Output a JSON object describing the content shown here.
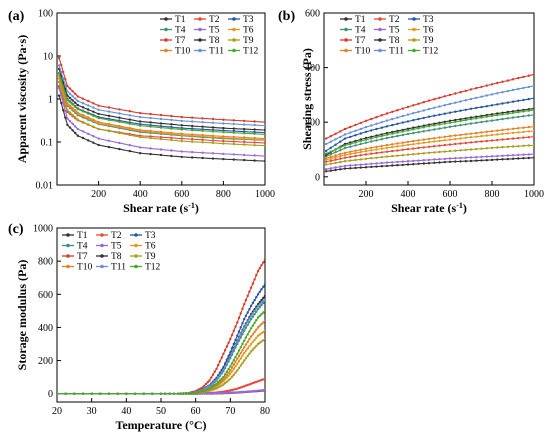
{
  "panels": [
    {
      "label": "(a)"
    },
    {
      "label": "(b)"
    },
    {
      "label": "(c)"
    }
  ],
  "legend_names": [
    "T1",
    "T2",
    "T3",
    "T4",
    "T5",
    "T6",
    "T7",
    "T8",
    "T9",
    "T10",
    "T11",
    "T12"
  ],
  "series_colors": [
    "#333333",
    "#e8483a",
    "#2555a8",
    "#3f8f7c",
    "#9a67d8",
    "#e09b1c",
    "#d83a2e",
    "#2f2f2f",
    "#a89d1e",
    "#e67e2a",
    "#6a8fd6",
    "#48a82e"
  ],
  "chart_data": [
    {
      "type": "line",
      "title": "",
      "xlabel": "Shear rate (s-1)",
      "ylabel": "Apparent viscosity (Pa·s)",
      "xlim": [
        0,
        1000
      ],
      "ylim": [
        0.01,
        100
      ],
      "yscale": "log",
      "xticks": [
        200,
        400,
        600,
        800,
        1000
      ],
      "yticks": [
        "0.01",
        "0.1",
        "1",
        "10",
        "100"
      ],
      "legend_position": "top-right",
      "x": [
        10,
        50,
        100,
        200,
        400,
        600,
        800,
        1000
      ],
      "series": [
        {
          "name": "T1",
          "values": [
            1.2,
            0.25,
            0.14,
            0.085,
            0.055,
            0.045,
            0.04,
            0.036
          ]
        },
        {
          "name": "T2",
          "values": [
            2.0,
            0.5,
            0.32,
            0.2,
            0.14,
            0.12,
            0.105,
            0.095
          ]
        },
        {
          "name": "T3",
          "values": [
            4.0,
            1.0,
            0.6,
            0.38,
            0.26,
            0.21,
            0.185,
            0.165
          ]
        },
        {
          "name": "T4",
          "values": [
            3.0,
            0.7,
            0.42,
            0.26,
            0.17,
            0.14,
            0.12,
            0.11
          ]
        },
        {
          "name": "T5",
          "values": [
            1.8,
            0.35,
            0.2,
            0.12,
            0.075,
            0.06,
            0.053,
            0.047
          ]
        },
        {
          "name": "T6",
          "values": [
            3.0,
            0.75,
            0.45,
            0.27,
            0.18,
            0.145,
            0.125,
            0.112
          ]
        },
        {
          "name": "T7",
          "values": [
            9.0,
            2.0,
            1.15,
            0.7,
            0.47,
            0.38,
            0.33,
            0.29
          ]
        },
        {
          "name": "T8",
          "values": [
            5.0,
            1.2,
            0.72,
            0.45,
            0.3,
            0.245,
            0.21,
            0.19
          ]
        },
        {
          "name": "T9",
          "values": [
            2.5,
            0.55,
            0.33,
            0.2,
            0.13,
            0.105,
            0.092,
            0.082
          ]
        },
        {
          "name": "T10",
          "values": [
            3.5,
            0.8,
            0.48,
            0.29,
            0.19,
            0.155,
            0.135,
            0.12
          ]
        },
        {
          "name": "T11",
          "values": [
            6.0,
            1.5,
            0.9,
            0.56,
            0.38,
            0.31,
            0.27,
            0.24
          ]
        },
        {
          "name": "T12",
          "values": [
            4.0,
            0.95,
            0.58,
            0.36,
            0.24,
            0.195,
            0.17,
            0.15
          ]
        }
      ]
    },
    {
      "type": "line",
      "title": "",
      "xlabel": "Shear rate (s-1)",
      "ylabel": "Shearing stress (Pa)",
      "xlim": [
        0,
        1000
      ],
      "ylim": [
        -30,
        600
      ],
      "xticks": [
        200,
        400,
        600,
        800,
        1000
      ],
      "yticks": [
        0,
        200,
        400,
        600
      ],
      "legend_position": "top-center",
      "x": [
        10,
        100,
        200,
        300,
        400,
        500,
        600,
        700,
        800,
        900,
        1000
      ],
      "series": [
        {
          "name": "T1",
          "values": [
            20,
            30,
            35,
            40,
            45,
            50,
            55,
            58,
            62,
            66,
            70
          ]
        },
        {
          "name": "T2",
          "values": [
            55,
            70,
            82,
            92,
            101,
            110,
            118,
            126,
            133,
            140,
            147
          ]
        },
        {
          "name": "T3",
          "values": [
            95,
            140,
            165,
            185,
            203,
            220,
            235,
            249,
            262,
            275,
            288
          ]
        },
        {
          "name": "T4",
          "values": [
            75,
            105,
            125,
            142,
            157,
            170,
            183,
            195,
            206,
            217,
            227
          ]
        },
        {
          "name": "T5",
          "values": [
            28,
            40,
            46,
            52,
            57,
            62,
            67,
            71,
            75,
            79,
            83
          ]
        },
        {
          "name": "T6",
          "values": [
            62,
            80,
            94,
            106,
            117,
            127,
            136,
            145,
            153,
            161,
            168
          ]
        },
        {
          "name": "T7",
          "values": [
            140,
            175,
            205,
            232,
            256,
            279,
            300,
            320,
            339,
            357,
            375
          ]
        },
        {
          "name": "T8",
          "values": [
            80,
            120,
            142,
            160,
            176,
            191,
            205,
            217,
            229,
            240,
            250
          ]
        },
        {
          "name": "T9",
          "values": [
            45,
            57,
            66,
            74,
            81,
            88,
            94,
            100,
            106,
            111,
            116
          ]
        },
        {
          "name": "T10",
          "values": [
            68,
            88,
            103,
            116,
            128,
            139,
            149,
            158,
            167,
            176,
            184
          ]
        },
        {
          "name": "T11",
          "values": [
            120,
            155,
            182,
            206,
            228,
            248,
            267,
            285,
            302,
            318,
            333
          ]
        },
        {
          "name": "T12",
          "values": [
            85,
            115,
            136,
            154,
            170,
            185,
            198,
            211,
            223,
            234,
            245
          ]
        }
      ]
    },
    {
      "type": "line",
      "title": "",
      "xlabel": "Temperature (°C)",
      "ylabel": "Storage modulus (Pa)",
      "xlim": [
        20,
        80
      ],
      "ylim": [
        -50,
        1000
      ],
      "xticks": [
        20,
        30,
        40,
        50,
        60,
        70,
        80
      ],
      "yticks": [
        0,
        200,
        400,
        600,
        800,
        1000
      ],
      "legend_position": "top-left",
      "x": [
        20,
        30,
        40,
        50,
        55,
        58,
        60,
        62,
        64,
        66,
        68,
        70,
        72,
        74,
        76,
        78,
        80
      ],
      "series": [
        {
          "name": "T1",
          "values": [
            0,
            0,
            0,
            0,
            0,
            0,
            0,
            1,
            1,
            2,
            3,
            5,
            7,
            10,
            13,
            16,
            20
          ]
        },
        {
          "name": "T2",
          "values": [
            0,
            0,
            0,
            0,
            0,
            0,
            1,
            2,
            4,
            7,
            12,
            20,
            30,
            45,
            60,
            75,
            90
          ]
        },
        {
          "name": "T3",
          "values": [
            0,
            0,
            0,
            0,
            0,
            3,
            10,
            25,
            50,
            95,
            160,
            250,
            350,
            450,
            530,
            600,
            660
          ]
        },
        {
          "name": "T4",
          "values": [
            0,
            0,
            0,
            0,
            0,
            2,
            8,
            20,
            42,
            80,
            135,
            215,
            300,
            380,
            450,
            510,
            560
          ]
        },
        {
          "name": "T5",
          "values": [
            0,
            0,
            0,
            0,
            0,
            0,
            0,
            1,
            2,
            3,
            4,
            6,
            8,
            11,
            14,
            18,
            22
          ]
        },
        {
          "name": "T6",
          "values": [
            0,
            0,
            0,
            0,
            0,
            1,
            5,
            12,
            25,
            45,
            75,
            120,
            180,
            245,
            300,
            350,
            380
          ]
        },
        {
          "name": "T7",
          "values": [
            0,
            0,
            0,
            0,
            0,
            4,
            15,
            38,
            80,
            150,
            240,
            330,
            430,
            540,
            640,
            740,
            810
          ]
        },
        {
          "name": "T8",
          "values": [
            0,
            0,
            0,
            0,
            0,
            2,
            8,
            22,
            48,
            90,
            150,
            230,
            320,
            405,
            480,
            540,
            590
          ]
        },
        {
          "name": "T9",
          "values": [
            0,
            0,
            0,
            0,
            0,
            1,
            3,
            8,
            18,
            32,
            55,
            90,
            140,
            200,
            255,
            300,
            330
          ]
        },
        {
          "name": "T10",
          "values": [
            0,
            0,
            0,
            0,
            0,
            1,
            5,
            12,
            26,
            50,
            85,
            140,
            210,
            280,
            345,
            400,
            440
          ]
        },
        {
          "name": "T11",
          "values": [
            0,
            0,
            0,
            0,
            0,
            2,
            9,
            22,
            46,
            86,
            145,
            225,
            315,
            400,
            470,
            530,
            570
          ]
        },
        {
          "name": "T12",
          "values": [
            0,
            0,
            0,
            0,
            0,
            1,
            6,
            15,
            32,
            60,
            100,
            165,
            240,
            320,
            395,
            460,
            500
          ]
        }
      ]
    }
  ]
}
